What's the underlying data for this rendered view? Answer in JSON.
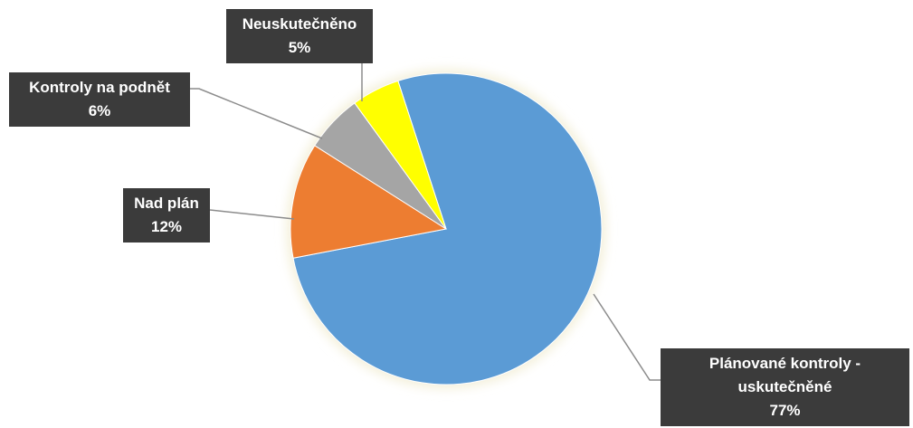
{
  "chart_data": {
    "type": "pie",
    "categories": [
      "Plánované kontroly - uskutečněné",
      "Nad plán",
      "Kontroly na podnět",
      "Neuskutečněno"
    ],
    "values": [
      77,
      12,
      6,
      5
    ],
    "value_labels": [
      "77%",
      "12%",
      "6%",
      "5%"
    ],
    "colors": [
      "#5b9bd5",
      "#ed7d31",
      "#a5a5a5",
      "#ffff00"
    ]
  }
}
